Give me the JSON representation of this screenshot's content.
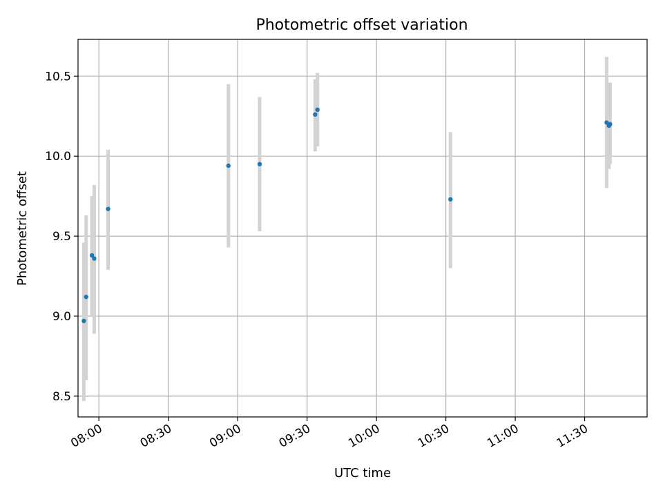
{
  "chart_data": {
    "type": "scatter",
    "title": "Photometric offset variation",
    "xlabel": "UTC time",
    "ylabel": "Photometric offset",
    "grid": true,
    "x_range": [
      "07:51",
      "11:57"
    ],
    "ylim": [
      8.37,
      10.73
    ],
    "x_ticks": [
      "08:00",
      "08:30",
      "09:00",
      "09:30",
      "10:00",
      "10:30",
      "11:00",
      "11:30"
    ],
    "y_ticks": [
      8.5,
      9.0,
      9.5,
      10.0,
      10.5
    ],
    "points": [
      {
        "x": "07:53:30",
        "y": 8.97,
        "err_low": 8.47,
        "err_high": 9.46
      },
      {
        "x": "07:54:30",
        "y": 9.12,
        "err_low": 8.6,
        "err_high": 9.63
      },
      {
        "x": "07:57:00",
        "y": 9.38,
        "err_low": 9.0,
        "err_high": 9.75
      },
      {
        "x": "07:58:00",
        "y": 9.36,
        "err_low": 8.89,
        "err_high": 9.82
      },
      {
        "x": "08:04:00",
        "y": 9.67,
        "err_low": 9.29,
        "err_high": 10.04
      },
      {
        "x": "08:56:00",
        "y": 9.94,
        "err_low": 9.43,
        "err_high": 10.45
      },
      {
        "x": "09:09:30",
        "y": 9.95,
        "err_low": 9.53,
        "err_high": 10.37
      },
      {
        "x": "09:33:30",
        "y": 10.26,
        "err_low": 10.03,
        "err_high": 10.48
      },
      {
        "x": "09:34:30",
        "y": 10.29,
        "err_low": 10.06,
        "err_high": 10.52
      },
      {
        "x": "10:32:00",
        "y": 9.73,
        "err_low": 9.3,
        "err_high": 10.15
      },
      {
        "x": "11:39:30",
        "y": 10.21,
        "err_low": 9.8,
        "err_high": 10.62
      },
      {
        "x": "11:40:30",
        "y": 10.19,
        "err_low": 9.92,
        "err_high": 10.46
      },
      {
        "x": "11:41:00",
        "y": 10.2,
        "err_low": 9.95,
        "err_high": 10.46
      }
    ],
    "marker_color": "#1f77b4",
    "errorbar_color": "#d3d3d3",
    "grid_color": "#b0b0b0"
  }
}
